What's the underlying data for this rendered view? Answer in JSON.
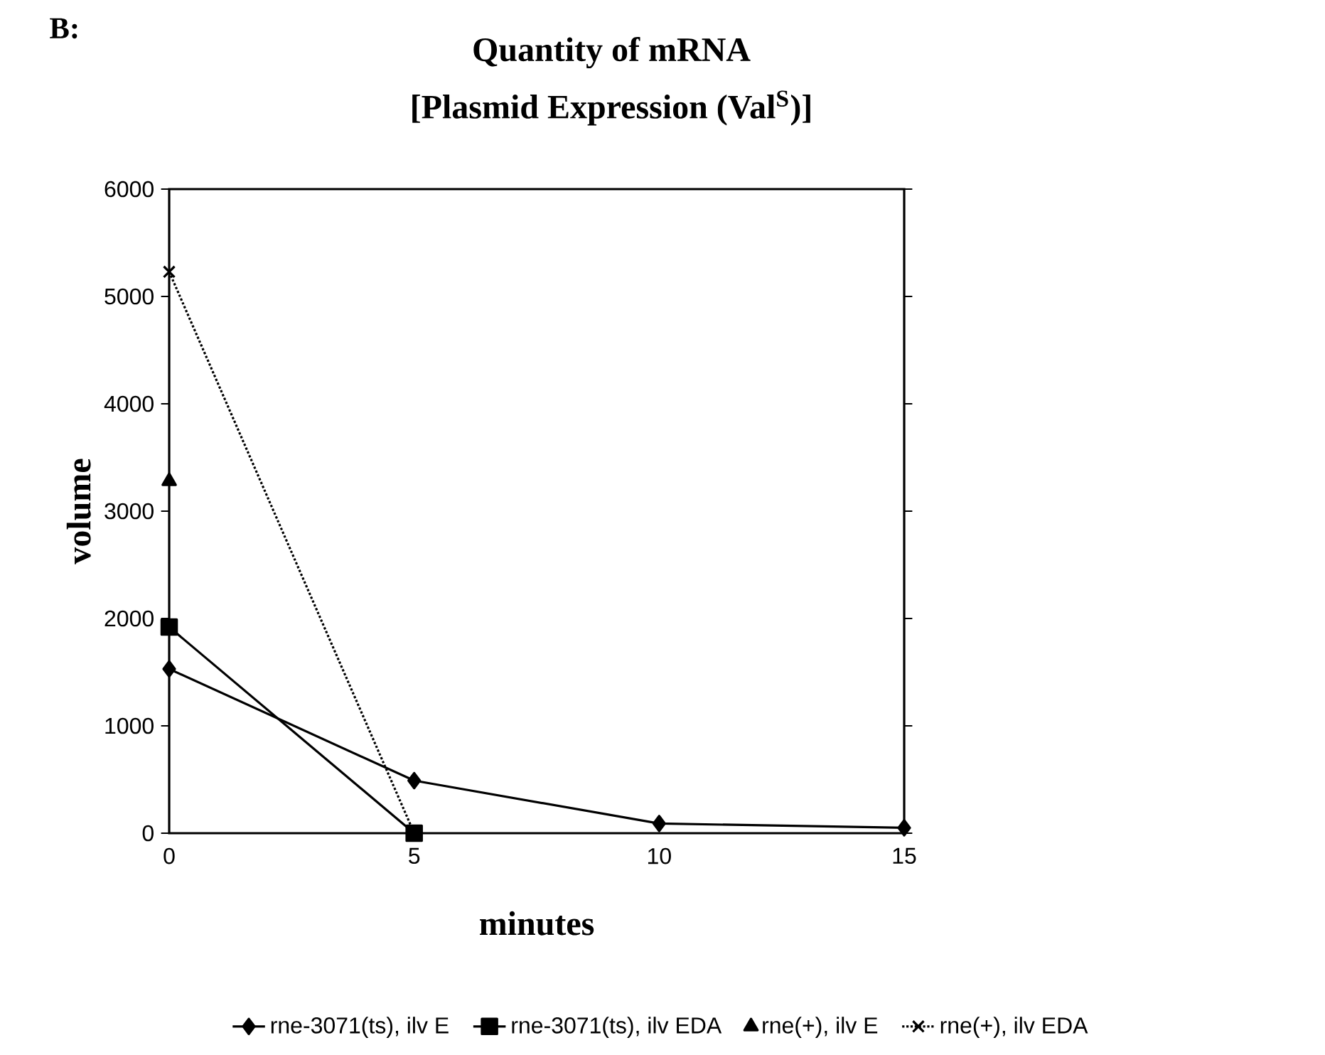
{
  "chart_data": {
    "type": "line",
    "title": "Quantity of mRNA",
    "subtitle": "[Plasmid Expression (Val$^{S}$)]",
    "xlabel": "minutes",
    "ylabel": "volume",
    "annotations": [
      "B:"
    ],
    "x": [
      0,
      5,
      10,
      15
    ],
    "xlim": [
      0,
      15
    ],
    "xticks": [
      0,
      5,
      10,
      15
    ],
    "ylim": [
      0,
      6000
    ],
    "yticks": [
      0,
      1000,
      2000,
      3000,
      4000,
      5000,
      6000
    ],
    "grid": false,
    "legend": "bottom",
    "series": [
      {
        "name": "rne-3071(ts), ilv E",
        "color": "#000000",
        "marker": "diamond",
        "line_style": "solid",
        "values": [
          1530,
          490,
          90,
          50
        ]
      },
      {
        "name": "rne-3071(ts), ilv EDA",
        "color": "#000000",
        "marker": "square",
        "line_style": "solid",
        "values": [
          1920,
          0,
          null,
          null
        ]
      },
      {
        "name": "rne(+), ilv E",
        "color": "#000000",
        "marker": "triangle",
        "line_style": "none",
        "values": [
          3280,
          null,
          null,
          null
        ]
      },
      {
        "name": "rne(+), ilv EDA",
        "color": "#000000",
        "marker": "cross",
        "line_style": "dotted",
        "values": [
          5230,
          0,
          null,
          null
        ]
      }
    ]
  }
}
